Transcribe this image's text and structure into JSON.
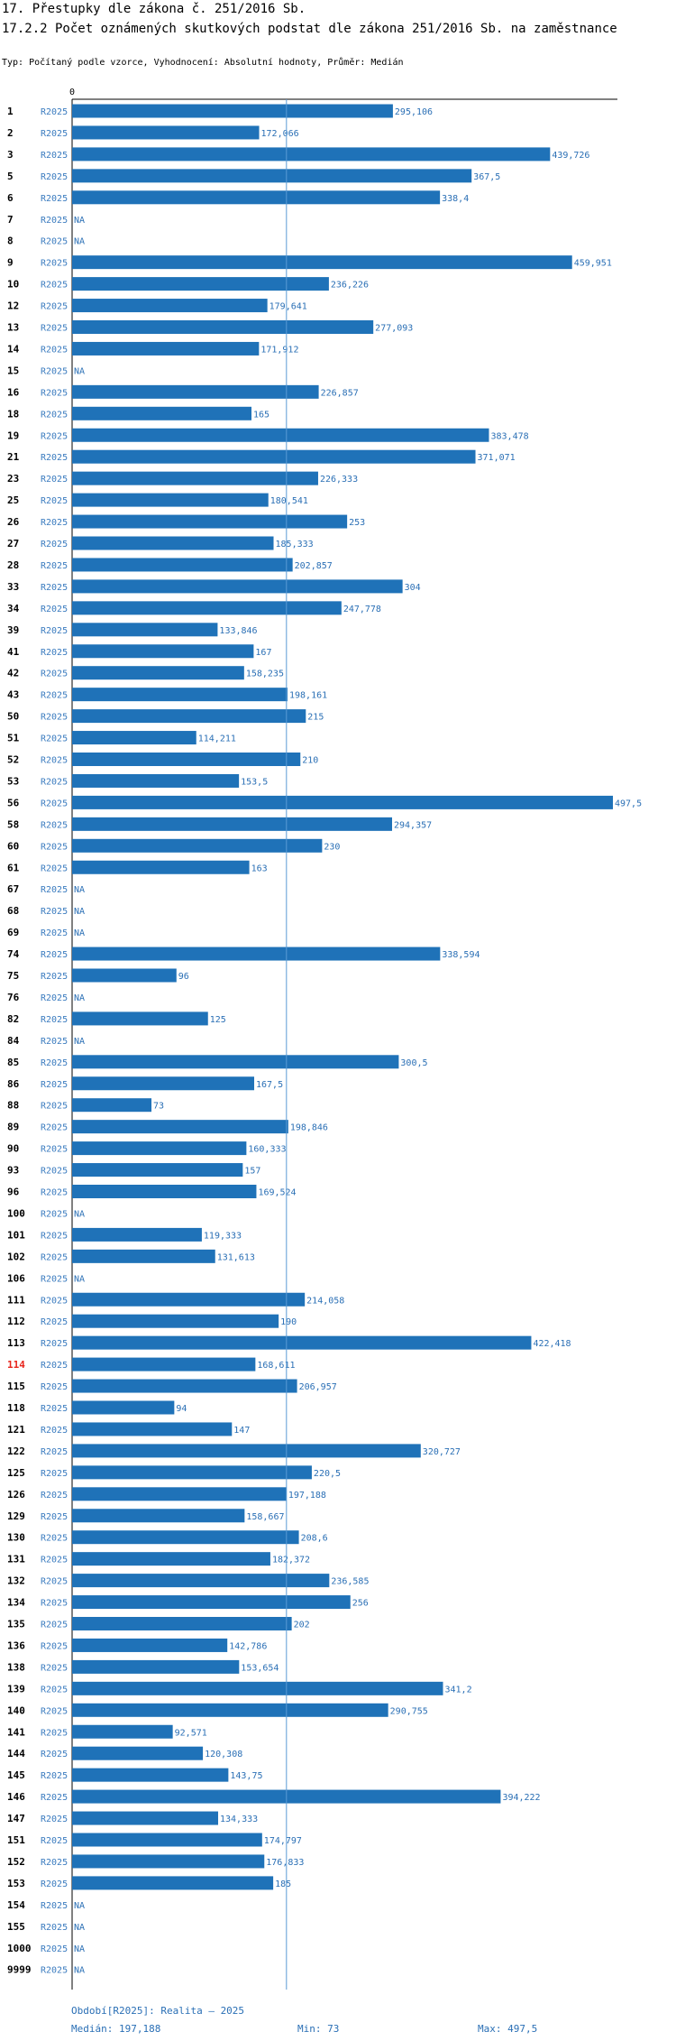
{
  "header": {
    "title": "17. Přestupky dle zákona č. 251/2016 Sb.",
    "subtitle_title": "17.2.2 Počet oznámených skutkových podstat dle zákona 251/2016 Sb. na zaměstnance",
    "description": "Typ: Počítaný podle vzorce, Vyhodnocení: Absolutní hodnoty, Průměr: Medián"
  },
  "colors": {
    "bar": "#1f72b8",
    "median_line": "#5a9bd5",
    "highlight": "#e8251c",
    "label": "#2a6fb5"
  },
  "chart_data": {
    "type": "bar",
    "orientation": "horizontal",
    "axis_zero_label": "0",
    "series_name": "R2025",
    "x_max": 497.5,
    "median": 197.188,
    "highlight_category": "114",
    "rows": [
      {
        "id": "1",
        "value": 295.106,
        "label": "295,106"
      },
      {
        "id": "2",
        "value": 172.066,
        "label": "172,066"
      },
      {
        "id": "3",
        "value": 439.726,
        "label": "439,726"
      },
      {
        "id": "5",
        "value": 367.5,
        "label": "367,5"
      },
      {
        "id": "6",
        "value": 338.4,
        "label": "338,4"
      },
      {
        "id": "7",
        "value": null,
        "label": "NA"
      },
      {
        "id": "8",
        "value": null,
        "label": "NA"
      },
      {
        "id": "9",
        "value": 459.951,
        "label": "459,951"
      },
      {
        "id": "10",
        "value": 236.226,
        "label": "236,226"
      },
      {
        "id": "12",
        "value": 179.641,
        "label": "179,641"
      },
      {
        "id": "13",
        "value": 277.093,
        "label": "277,093"
      },
      {
        "id": "14",
        "value": 171.912,
        "label": "171,912"
      },
      {
        "id": "15",
        "value": null,
        "label": "NA"
      },
      {
        "id": "16",
        "value": 226.857,
        "label": "226,857"
      },
      {
        "id": "18",
        "value": 165,
        "label": "165"
      },
      {
        "id": "19",
        "value": 383.478,
        "label": "383,478"
      },
      {
        "id": "21",
        "value": 371.071,
        "label": "371,071"
      },
      {
        "id": "23",
        "value": 226.333,
        "label": "226,333"
      },
      {
        "id": "25",
        "value": 180.541,
        "label": "180,541"
      },
      {
        "id": "26",
        "value": 253,
        "label": "253"
      },
      {
        "id": "27",
        "value": 185.333,
        "label": "185,333"
      },
      {
        "id": "28",
        "value": 202.857,
        "label": "202,857"
      },
      {
        "id": "33",
        "value": 304,
        "label": "304"
      },
      {
        "id": "34",
        "value": 247.778,
        "label": "247,778"
      },
      {
        "id": "39",
        "value": 133.846,
        "label": "133,846"
      },
      {
        "id": "41",
        "value": 167,
        "label": "167"
      },
      {
        "id": "42",
        "value": 158.235,
        "label": "158,235"
      },
      {
        "id": "43",
        "value": 198.161,
        "label": "198,161"
      },
      {
        "id": "50",
        "value": 215,
        "label": "215"
      },
      {
        "id": "51",
        "value": 114.211,
        "label": "114,211"
      },
      {
        "id": "52",
        "value": 210,
        "label": "210"
      },
      {
        "id": "53",
        "value": 153.5,
        "label": "153,5"
      },
      {
        "id": "56",
        "value": 497.5,
        "label": "497,5"
      },
      {
        "id": "58",
        "value": 294.357,
        "label": "294,357"
      },
      {
        "id": "60",
        "value": 230,
        "label": "230"
      },
      {
        "id": "61",
        "value": 163,
        "label": "163"
      },
      {
        "id": "67",
        "value": null,
        "label": "NA"
      },
      {
        "id": "68",
        "value": null,
        "label": "NA"
      },
      {
        "id": "69",
        "value": null,
        "label": "NA"
      },
      {
        "id": "74",
        "value": 338.594,
        "label": "338,594"
      },
      {
        "id": "75",
        "value": 96,
        "label": "96"
      },
      {
        "id": "76",
        "value": null,
        "label": "NA"
      },
      {
        "id": "82",
        "value": 125,
        "label": "125"
      },
      {
        "id": "84",
        "value": null,
        "label": "NA"
      },
      {
        "id": "85",
        "value": 300.5,
        "label": "300,5"
      },
      {
        "id": "86",
        "value": 167.5,
        "label": "167,5"
      },
      {
        "id": "88",
        "value": 73,
        "label": "73"
      },
      {
        "id": "89",
        "value": 198.846,
        "label": "198,846"
      },
      {
        "id": "90",
        "value": 160.333,
        "label": "160,333"
      },
      {
        "id": "93",
        "value": 157,
        "label": "157"
      },
      {
        "id": "96",
        "value": 169.524,
        "label": "169,524"
      },
      {
        "id": "100",
        "value": null,
        "label": "NA"
      },
      {
        "id": "101",
        "value": 119.333,
        "label": "119,333"
      },
      {
        "id": "102",
        "value": 131.613,
        "label": "131,613"
      },
      {
        "id": "106",
        "value": null,
        "label": "NA"
      },
      {
        "id": "111",
        "value": 214.058,
        "label": "214,058"
      },
      {
        "id": "112",
        "value": 190,
        "label": "190"
      },
      {
        "id": "113",
        "value": 422.418,
        "label": "422,418"
      },
      {
        "id": "114",
        "value": 168.611,
        "label": "168,611"
      },
      {
        "id": "115",
        "value": 206.957,
        "label": "206,957"
      },
      {
        "id": "118",
        "value": 94,
        "label": "94"
      },
      {
        "id": "121",
        "value": 147,
        "label": "147"
      },
      {
        "id": "122",
        "value": 320.727,
        "label": "320,727"
      },
      {
        "id": "125",
        "value": 220.5,
        "label": "220,5"
      },
      {
        "id": "126",
        "value": 197.188,
        "label": "197,188"
      },
      {
        "id": "129",
        "value": 158.667,
        "label": "158,667"
      },
      {
        "id": "130",
        "value": 208.6,
        "label": "208,6"
      },
      {
        "id": "131",
        "value": 182.372,
        "label": "182,372"
      },
      {
        "id": "132",
        "value": 236.585,
        "label": "236,585"
      },
      {
        "id": "134",
        "value": 256,
        "label": "256"
      },
      {
        "id": "135",
        "value": 202,
        "label": "202"
      },
      {
        "id": "136",
        "value": 142.786,
        "label": "142,786"
      },
      {
        "id": "138",
        "value": 153.654,
        "label": "153,654"
      },
      {
        "id": "139",
        "value": 341.2,
        "label": "341,2"
      },
      {
        "id": "140",
        "value": 290.755,
        "label": "290,755"
      },
      {
        "id": "141",
        "value": 92.571,
        "label": "92,571"
      },
      {
        "id": "144",
        "value": 120.308,
        "label": "120,308"
      },
      {
        "id": "145",
        "value": 143.75,
        "label": "143,75"
      },
      {
        "id": "146",
        "value": 394.222,
        "label": "394,222"
      },
      {
        "id": "147",
        "value": 134.333,
        "label": "134,333"
      },
      {
        "id": "151",
        "value": 174.797,
        "label": "174,797"
      },
      {
        "id": "152",
        "value": 176.833,
        "label": "176,833"
      },
      {
        "id": "153",
        "value": 185,
        "label": "185"
      },
      {
        "id": "154",
        "value": null,
        "label": "NA"
      },
      {
        "id": "155",
        "value": null,
        "label": "NA"
      },
      {
        "id": "1000",
        "value": null,
        "label": "NA"
      },
      {
        "id": "9999",
        "value": null,
        "label": "NA"
      }
    ]
  },
  "footer": {
    "period": "Období[R2025]: Realita – 2025",
    "median": "Medián: 197,188",
    "min": "Min: 73",
    "max": "Max: 497,5"
  }
}
